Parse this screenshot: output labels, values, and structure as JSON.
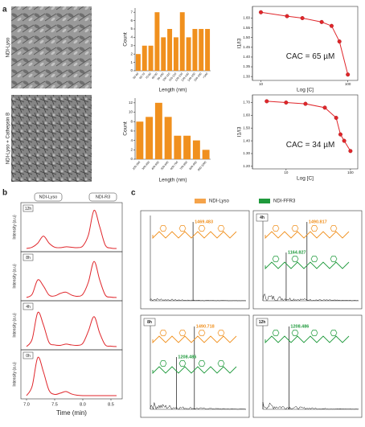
{
  "panel_labels": [
    "a",
    "b",
    "c"
  ],
  "tem_labels": [
    "NDI-Lyso",
    "NDI-Lyso + Cathepsin B"
  ],
  "chart_data": [
    {
      "type": "bar",
      "ylabel": "Count",
      "xlabel": "Length (nm)",
      "color": "#f0901e",
      "categories": [
        "50-60",
        "60-70",
        "70-80",
        "80-90",
        "90-100",
        "100-110",
        "110-120",
        "120-130",
        "130-140",
        "140-150",
        "150-160",
        ">160"
      ],
      "values": [
        2,
        3,
        3,
        7,
        4,
        5,
        4,
        7,
        4,
        5,
        5,
        5
      ],
      "ylim": [
        0,
        7.5
      ],
      "yticks": [
        0,
        1,
        2,
        3,
        4,
        5,
        6,
        7
      ]
    },
    {
      "type": "scatter",
      "xscale": "log",
      "ylabel": "I1/I3",
      "xlabel": "Log [C]",
      "color": "#e0262b",
      "annotation": "CAC = 65 µM",
      "x": [
        10,
        20,
        30,
        50,
        65,
        80,
        100
      ],
      "values": [
        1.63,
        1.61,
        1.6,
        1.58,
        1.56,
        1.48,
        1.31
      ],
      "xlim": [
        8,
        130
      ],
      "xticks": [
        10,
        100
      ],
      "ylim": [
        1.28,
        1.66
      ],
      "yticks": [
        {
          "value": 1.3,
          "label": "1.30"
        },
        {
          "value": 1.35,
          "label": "1.35"
        },
        {
          "value": 1.4,
          "label": "1.40"
        },
        {
          "value": 1.45,
          "label": "1.45"
        },
        {
          "value": 1.5,
          "label": "1.50"
        },
        {
          "value": 1.55,
          "label": "1.55"
        },
        {
          "value": 1.6,
          "label": "1.60"
        }
      ]
    },
    {
      "type": "bar",
      "ylabel": "Count",
      "xlabel": "Length (nm)",
      "color": "#f0901e",
      "categories": [
        "200-300",
        "300-400",
        "400-500",
        "500-600",
        "600-700",
        "700-800",
        "800-900",
        "900-1000"
      ],
      "values": [
        8,
        9,
        12,
        9,
        5,
        5,
        4,
        2
      ],
      "ylim": [
        0,
        13
      ],
      "yticks": [
        0,
        2,
        4,
        6,
        8,
        10,
        12
      ]
    },
    {
      "type": "scatter",
      "xscale": "log",
      "ylabel": "I1/I3",
      "xlabel": "Log [C]",
      "color": "#e0262b",
      "annotation": "CAC = 34 µM",
      "x": [
        5,
        10,
        20,
        40,
        60,
        70,
        80,
        100
      ],
      "values": [
        1.71,
        1.7,
        1.69,
        1.66,
        1.58,
        1.45,
        1.4,
        1.32
      ],
      "xlim": [
        3,
        130
      ],
      "xticks": [
        10,
        100
      ],
      "ylim": [
        1.18,
        1.76
      ],
      "yticks": [
        {
          "value": 1.2,
          "label": "1.20"
        },
        {
          "value": 1.3,
          "label": "1.30"
        },
        {
          "value": 1.4,
          "label": "1.40"
        },
        {
          "value": 1.5,
          "label": "1.50"
        },
        {
          "value": 1.6,
          "label": "1.60"
        },
        {
          "value": 1.7,
          "label": "1.70"
        }
      ]
    },
    {
      "type": "line",
      "ylabel": "Intensity (a.u)",
      "xlabel": "Time (min)",
      "annotations": [
        "NDI-Lyso",
        "NDI-R3"
      ],
      "x": [
        7.0,
        7.1,
        7.2,
        7.3,
        7.4,
        7.5,
        7.6,
        7.7,
        7.8,
        7.9,
        8.0,
        8.1,
        8.2,
        8.3,
        8.4,
        8.5,
        8.6
      ],
      "xlim": [
        6.9,
        8.7
      ],
      "ylim": [
        0,
        1
      ],
      "xticks": [
        {
          "value": 7.0,
          "label": "7.0"
        },
        {
          "value": 7.5,
          "label": "7.5"
        },
        {
          "value": 8.0,
          "label": "8.0"
        },
        {
          "value": 8.5,
          "label": "8.5"
        }
      ],
      "series": [
        {
          "name": "12h",
          "color": "#e0262b",
          "values": [
            0.02,
            0.05,
            0.15,
            0.32,
            0.15,
            0.05,
            0.04,
            0.06,
            0.05,
            0.04,
            0.08,
            0.35,
            0.95,
            0.55,
            0.1,
            0.03,
            0.02
          ]
        },
        {
          "name": "8h",
          "color": "#e0262b",
          "values": [
            0.02,
            0.1,
            0.45,
            0.3,
            0.08,
            0.06,
            0.12,
            0.15,
            0.08,
            0.05,
            0.1,
            0.4,
            0.9,
            0.45,
            0.08,
            0.03,
            0.02
          ]
        },
        {
          "name": "4h",
          "color": "#e0262b",
          "values": [
            0.02,
            0.2,
            0.85,
            0.55,
            0.12,
            0.06,
            0.05,
            0.08,
            0.06,
            0.05,
            0.1,
            0.4,
            0.75,
            0.35,
            0.06,
            0.03,
            0.02
          ]
        },
        {
          "name": "0h",
          "color": "#e0262b",
          "values": [
            0.02,
            0.25,
            0.95,
            0.6,
            0.15,
            0.05,
            0.08,
            0.12,
            0.06,
            0.03,
            0.02,
            0.02,
            0.02,
            0.02,
            0.02,
            0.02,
            0.02
          ]
        }
      ]
    }
  ],
  "spectra": {
    "legend": [
      {
        "name": "NDI-Lyso",
        "color": "#f5a34a"
      },
      {
        "name": "NDI-FFR3",
        "color": "#1f9a3c"
      }
    ],
    "xlim": [
      800,
      2300
    ],
    "panels": [
      {
        "peaks": [
          {
            "mz": 1469.483,
            "color": "#f0901e"
          }
        ]
      },
      {
        "time": "4h",
        "peaks": [
          {
            "mz": 1490.817,
            "color": "#f0901e"
          },
          {
            "mz": 1164.827,
            "color": "#1f9a3c"
          }
        ]
      },
      {
        "time": "8h",
        "peaks": [
          {
            "mz": 1490.718,
            "color": "#f0901e"
          },
          {
            "mz": 1208.486,
            "color": "#1f9a3c"
          }
        ]
      },
      {
        "time": "12h",
        "peaks": [
          {
            "mz": 1208.486,
            "color": "#1f9a3c"
          }
        ]
      }
    ]
  }
}
